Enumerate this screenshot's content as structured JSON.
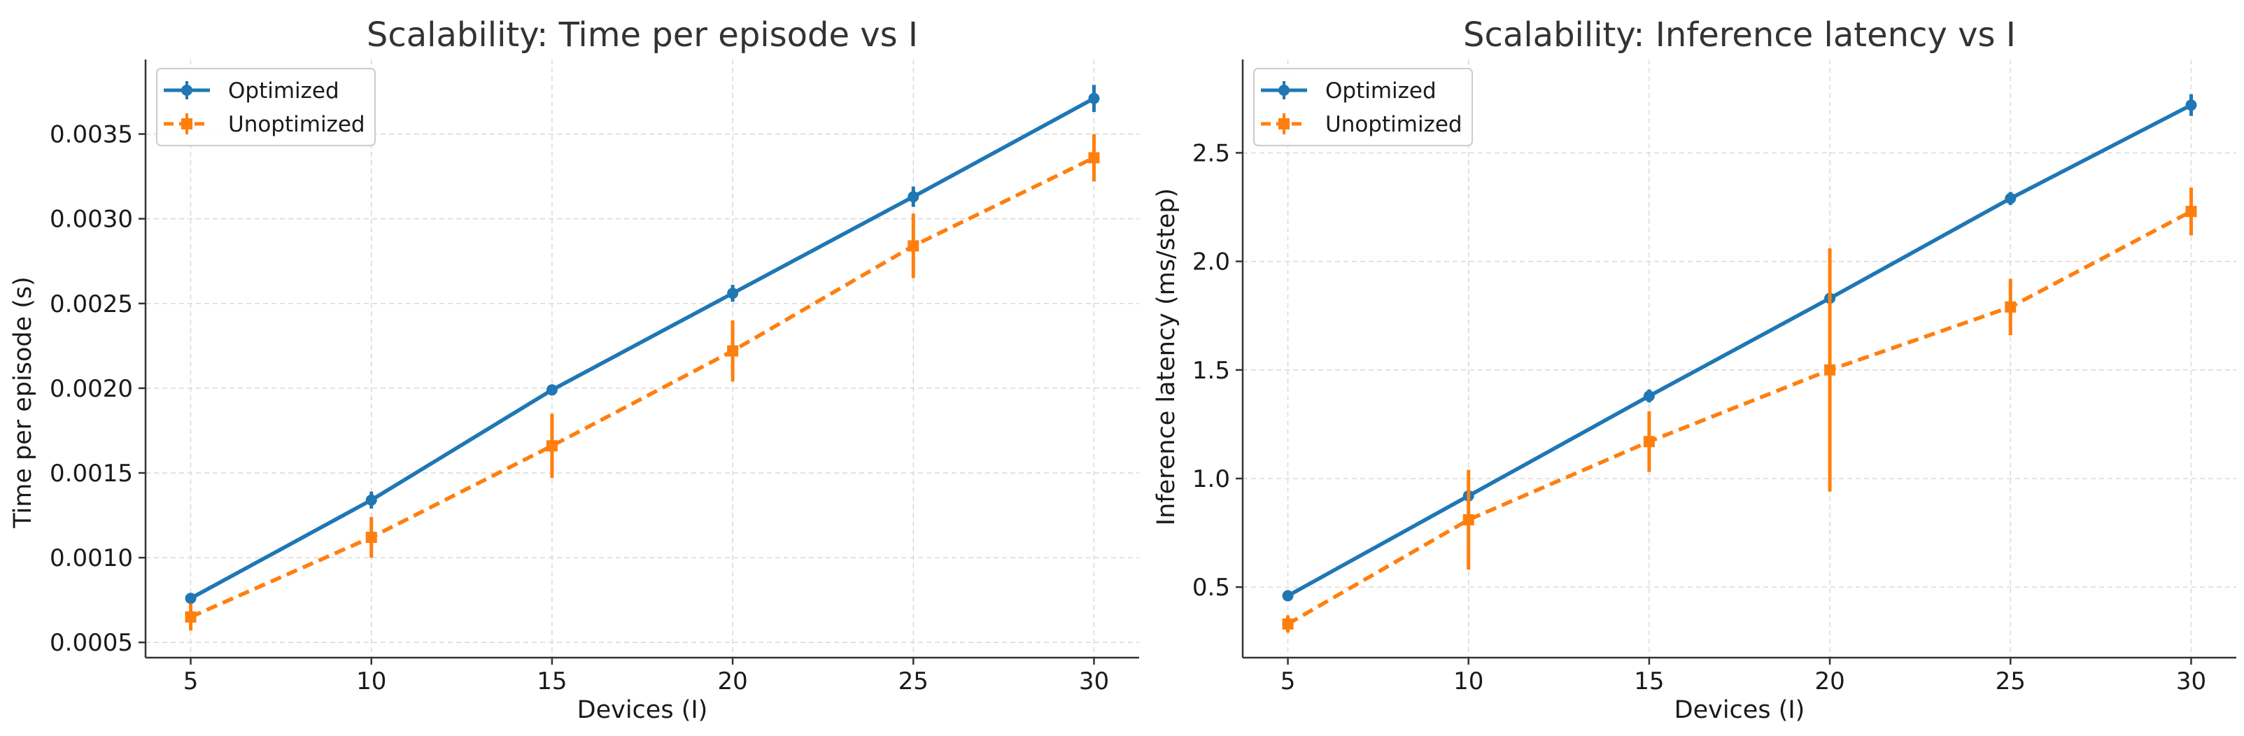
{
  "chart_data": [
    {
      "type": "line",
      "title": "Scalability: Time per episode vs I",
      "xlabel": "Devices (I)",
      "ylabel": "Time per episode (s)",
      "x": [
        5,
        10,
        15,
        20,
        25,
        30
      ],
      "x_ticks": [
        "5",
        "10",
        "15",
        "20",
        "25",
        "30"
      ],
      "xlim": [
        3.75,
        31.25
      ],
      "ylim": [
        0.00041,
        0.00394
      ],
      "y_ticks": [
        0.0005,
        0.001,
        0.0015,
        0.002,
        0.0025,
        0.003,
        0.0035
      ],
      "y_tick_labels": [
        "0.0005",
        "0.0010",
        "0.0015",
        "0.0020",
        "0.0025",
        "0.0030",
        "0.0035"
      ],
      "grid": true,
      "legend_position": "top-left",
      "series": [
        {
          "name": "Optimized",
          "values": [
            0.00076,
            0.00134,
            0.00199,
            0.00256,
            0.00313,
            0.00371
          ],
          "errors": [
            3e-05,
            5e-05,
            3e-05,
            5e-05,
            6e-05,
            8e-05
          ],
          "color": "#1f77b4",
          "line_style": "solid",
          "marker": "circle"
        },
        {
          "name": "Unoptimized",
          "values": [
            0.00065,
            0.00112,
            0.00166,
            0.00222,
            0.00284,
            0.00336
          ],
          "errors": [
            8e-05,
            0.00012,
            0.00019,
            0.00018,
            0.00019,
            0.00014
          ],
          "color": "#ff7f0e",
          "line_style": "dashed",
          "marker": "square"
        }
      ]
    },
    {
      "type": "line",
      "title": "Scalability: Inference latency vs I",
      "xlabel": "Devices (I)",
      "ylabel": "Inference latency (ms/step)",
      "x": [
        5,
        10,
        15,
        20,
        25,
        30
      ],
      "x_ticks": [
        "5",
        "10",
        "15",
        "20",
        "25",
        "30"
      ],
      "xlim": [
        3.75,
        31.25
      ],
      "ylim": [
        0.175,
        2.93
      ],
      "y_ticks": [
        0.5,
        1.0,
        1.5,
        2.0,
        2.5
      ],
      "y_tick_labels": [
        "0.5",
        "1.0",
        "1.5",
        "2.0",
        "2.5"
      ],
      "grid": true,
      "legend_position": "top-left",
      "series": [
        {
          "name": "Optimized",
          "values": [
            0.46,
            0.92,
            1.38,
            1.83,
            2.29,
            2.72
          ],
          "errors": [
            0.02,
            0.03,
            0.03,
            0.02,
            0.03,
            0.05
          ],
          "color": "#1f77b4",
          "line_style": "solid",
          "marker": "circle"
        },
        {
          "name": "Unoptimized",
          "values": [
            0.33,
            0.81,
            1.17,
            1.5,
            1.79,
            2.23
          ],
          "errors": [
            0.04,
            0.23,
            0.14,
            0.56,
            0.13,
            0.11
          ],
          "color": "#ff7f0e",
          "line_style": "dashed",
          "marker": "square"
        }
      ]
    }
  ]
}
